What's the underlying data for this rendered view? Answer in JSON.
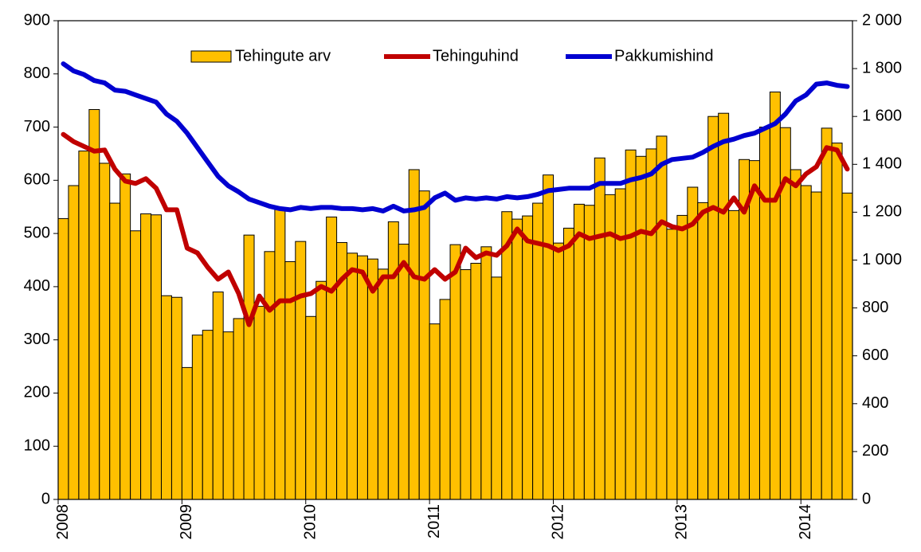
{
  "chart_data": {
    "type": "bar-line",
    "categories": [
      "2008",
      null,
      null,
      null,
      null,
      null,
      null,
      null,
      null,
      null,
      null,
      null,
      "2009",
      null,
      null,
      null,
      null,
      null,
      null,
      null,
      null,
      null,
      null,
      null,
      "2010",
      null,
      null,
      null,
      null,
      null,
      null,
      null,
      null,
      null,
      null,
      null,
      "2011",
      null,
      null,
      null,
      null,
      null,
      null,
      null,
      null,
      null,
      null,
      null,
      "2012",
      null,
      null,
      null,
      null,
      null,
      null,
      null,
      null,
      null,
      null,
      null,
      "2013",
      null,
      null,
      null,
      null,
      null,
      null,
      null,
      null,
      null,
      null,
      null,
      "2014",
      null,
      null,
      null,
      null
    ],
    "series": [
      {
        "name": "Tehingute arv",
        "type": "bar",
        "color": "#ffc000",
        "axis": "y",
        "values": [
          528,
          590,
          655,
          733,
          632,
          557,
          612,
          505,
          537,
          535,
          383,
          380,
          248,
          309,
          318,
          390,
          315,
          340,
          497,
          363,
          466,
          548,
          447,
          485,
          344,
          410,
          531,
          483,
          463,
          458,
          452,
          433,
          522,
          480,
          620,
          580,
          330,
          376,
          479,
          432,
          444,
          475,
          418,
          541,
          527,
          533,
          557,
          610,
          482,
          510,
          555,
          553,
          642,
          573,
          584,
          657,
          645,
          659,
          683,
          508,
          534,
          587,
          558,
          720,
          726,
          543,
          639,
          637,
          700,
          766,
          699,
          620,
          590,
          578,
          698,
          670,
          576
        ]
      },
      {
        "name": "Tehinguhind",
        "type": "line",
        "color": "#c00000",
        "axis": "y2",
        "values": [
          1525,
          1495,
          1475,
          1455,
          1460,
          1380,
          1330,
          1320,
          1340,
          1300,
          1210,
          1210,
          1050,
          1030,
          970,
          920,
          950,
          860,
          730,
          850,
          790,
          830,
          830,
          850,
          860,
          890,
          870,
          920,
          960,
          950,
          870,
          930,
          930,
          990,
          930,
          920,
          960,
          920,
          950,
          1050,
          1010,
          1030,
          1020,
          1060,
          1130,
          1080,
          1070,
          1060,
          1040,
          1060,
          1110,
          1090,
          1100,
          1110,
          1090,
          1100,
          1120,
          1110,
          1160,
          1140,
          1130,
          1150,
          1200,
          1220,
          1200,
          1260,
          1200,
          1310,
          1250,
          1250,
          1340,
          1310,
          1360,
          1390,
          1470,
          1460,
          1380
        ]
      },
      {
        "name": "Pakkumishind",
        "type": "line",
        "color": "#0000d0",
        "axis": "y2",
        "values": [
          1820,
          1790,
          1775,
          1750,
          1740,
          1710,
          1705,
          1690,
          1675,
          1660,
          1610,
          1580,
          1530,
          1470,
          1410,
          1350,
          1310,
          1285,
          1255,
          1240,
          1225,
          1215,
          1210,
          1220,
          1215,
          1220,
          1220,
          1215,
          1215,
          1210,
          1215,
          1205,
          1225,
          1205,
          1210,
          1220,
          1260,
          1280,
          1250,
          1260,
          1255,
          1260,
          1255,
          1265,
          1260,
          1265,
          1275,
          1290,
          1295,
          1300,
          1300,
          1300,
          1320,
          1320,
          1320,
          1335,
          1345,
          1360,
          1400,
          1420,
          1425,
          1430,
          1450,
          1475,
          1495,
          1505,
          1520,
          1530,
          1550,
          1570,
          1610,
          1665,
          1690,
          1735,
          1740,
          1730,
          1725
        ]
      }
    ],
    "ylim": [
      0,
      900
    ],
    "yticks": [
      0,
      100,
      200,
      300,
      400,
      500,
      600,
      700,
      800,
      900
    ],
    "y2lim": [
      0,
      2000
    ],
    "y2ticks": [
      0,
      200,
      400,
      600,
      800,
      {
        "value": 1000,
        "label": "1 000"
      },
      {
        "value": 1200,
        "label": "1 200"
      },
      {
        "value": 1400,
        "label": "1 400"
      },
      {
        "value": 1600,
        "label": "1 600"
      },
      {
        "value": 1800,
        "label": "1 800"
      },
      {
        "value": 2000,
        "label": "2 000"
      }
    ],
    "grid": false,
    "legend": "top"
  }
}
